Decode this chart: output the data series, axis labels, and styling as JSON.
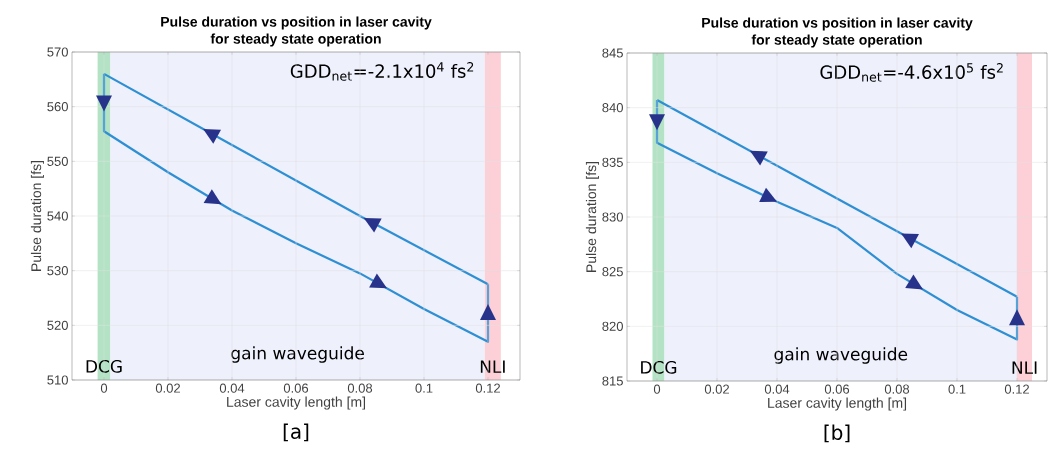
{
  "chart_data": [
    {
      "type": "line",
      "title": "Pulse duration vs position in laser cavity\nfor steady state operation",
      "xlabel": "Laser cavity length [m]",
      "ylabel": "Pulse duration [fs]",
      "xlim": [
        -0.01,
        0.13
      ],
      "ylim": [
        510,
        570
      ],
      "xticks": [
        0,
        0.02,
        0.04,
        0.06,
        0.08,
        0.1,
        0.12
      ],
      "yticks": [
        510,
        520,
        530,
        540,
        550,
        560,
        570
      ],
      "grid": true,
      "series": [
        {
          "color": "#2e8fd3",
          "x": [
            0,
            0,
            0.02,
            0.04,
            0.06,
            0.08,
            0.1,
            0.12,
            0.12
          ],
          "values": [
            566,
            555.5,
            548,
            541,
            535,
            529.5,
            523,
            517,
            527.5
          ]
        },
        {
          "color": "#2e8fd3",
          "x": [
            0,
            0.04,
            0.08,
            0.12
          ],
          "values": [
            566,
            553,
            540,
            527.5
          ]
        }
      ],
      "bands": [
        {
          "axis": "x",
          "from": -0.002,
          "to": 0.002,
          "label": "DCG",
          "color": "#b3e3c4"
        },
        {
          "axis": "x",
          "from": 0.002,
          "to": 0.119,
          "label": "gain waveguide",
          "color": "#eef0fc"
        },
        {
          "axis": "x",
          "from": 0.119,
          "to": 0.124,
          "label": "NLI",
          "color": "#fdd0d8"
        }
      ],
      "annotations": [
        "GDD$_{net}$=-2.1x10$^{4}$ fs$^{2}$",
        "[a]"
      ]
    },
    {
      "type": "line",
      "title": "Pulse duration vs position in laser cavity\nfor steady state operation",
      "xlabel": "Laser cavity length [m]",
      "ylabel": "Pulse duration [fs]",
      "xlim": [
        -0.01,
        0.13
      ],
      "ylim": [
        815,
        845
      ],
      "xticks": [
        0,
        0.02,
        0.04,
        0.06,
        0.08,
        0.1,
        0.12
      ],
      "yticks": [
        815,
        820,
        825,
        830,
        835,
        840,
        845
      ],
      "grid": true,
      "series": [
        {
          "color": "#2e8fd3",
          "x": [
            0,
            0,
            0.02,
            0.04,
            0.06,
            0.08,
            0.1,
            0.12,
            0.12
          ],
          "values": [
            840.7,
            836.8,
            834,
            831.4,
            829,
            824.8,
            821.5,
            818.8,
            822.7
          ]
        },
        {
          "color": "#2e8fd3",
          "x": [
            0,
            0.06,
            0.12
          ],
          "values": [
            840.7,
            831.7,
            822.7
          ]
        }
      ],
      "bands": [
        {
          "axis": "x",
          "from": -0.0015,
          "to": 0.0025,
          "label": "DCG",
          "color": "#b3e3c4"
        },
        {
          "axis": "x",
          "from": 0.0025,
          "to": 0.12,
          "label": "gain waveguide",
          "color": "#eef0fc"
        },
        {
          "axis": "x",
          "from": 0.12,
          "to": 0.125,
          "label": "NLI",
          "color": "#fdd0d8"
        }
      ],
      "annotations": [
        "GDD$_{net}$=-4.6x10$^{5}$ fs$^{2}$",
        "[b]"
      ]
    }
  ]
}
